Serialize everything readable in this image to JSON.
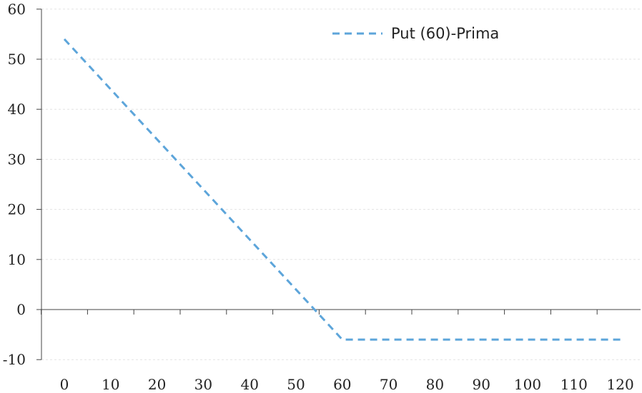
{
  "chart_data": {
    "type": "line",
    "title": "",
    "xlabel": "",
    "ylabel": "",
    "x_ticks": [
      "0",
      "10",
      "20",
      "30",
      "40",
      "50",
      "60",
      "70",
      "80",
      "90",
      "100",
      "110",
      "120"
    ],
    "y_ticks": [
      "60",
      "50",
      "40",
      "30",
      "20",
      "10",
      "0",
      "-10"
    ],
    "xlim": [
      -5,
      125
    ],
    "ylim": [
      -10,
      60
    ],
    "grid": true,
    "legend_position": "top-right",
    "series": [
      {
        "name": "Put (60)-Prima",
        "color": "#5DA5DA",
        "style": "dashed",
        "x": [
          0,
          60,
          120
        ],
        "y": [
          54,
          -6,
          -6
        ]
      }
    ]
  }
}
